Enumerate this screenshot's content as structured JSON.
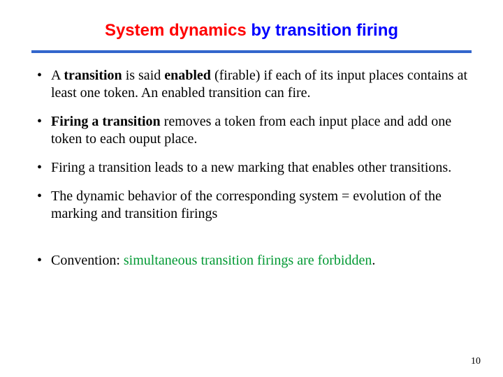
{
  "title": {
    "part_red": "System dynamics ",
    "part_blue": "by transition firing"
  },
  "bullets": {
    "b1": {
      "pre": "A ",
      "bold1": "transition",
      "mid": " is said ",
      "bold2": "enabled",
      "post": " (firable) if each of its input places contains at least one token. An enabled transition can fire."
    },
    "b2": {
      "bold": "Firing a transition",
      "post": " removes a token from each input place and add one token to each ouput place."
    },
    "b3": "Firing a transition leads to a new marking that enables other transitions.",
    "b4": "The dynamic behavior of the corresponding system = evolution of the marking and transition firings",
    "b5": {
      "pre": "Convention: ",
      "green": "simultaneous transition firings are forbidden",
      "post": "."
    }
  },
  "page_number": "10",
  "colors": {
    "title_red": "#ff0000",
    "title_blue": "#0000ff",
    "rule": "#3366cc",
    "body_text": "#000000",
    "green": "#009933",
    "background": "#ffffff"
  }
}
